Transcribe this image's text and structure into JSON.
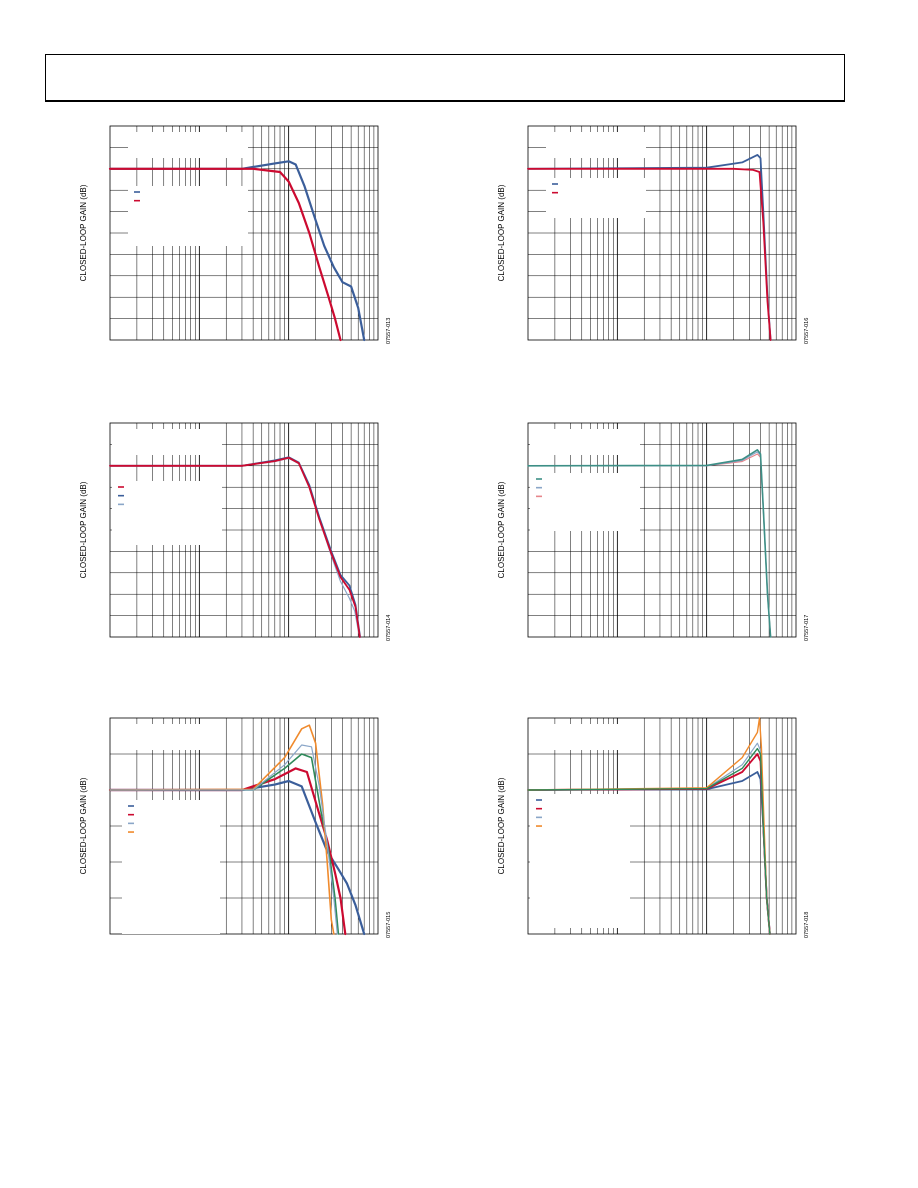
{
  "page": {
    "header_text": ""
  },
  "colors": {
    "blue": "#3b5e9a",
    "red": "#cc0a30",
    "teal": "#3d8f86",
    "lightblue": "#8aa6c8",
    "salmon": "#e7858b",
    "green": "#2f8a5a",
    "orange": "#f08a2c",
    "gray": "#777777"
  },
  "chart_data": [
    {
      "type": "line",
      "id": "fig-013",
      "ylabel": "CLOSED-LOOP GAIN (dB)",
      "code": "07557-013",
      "xscale": "log",
      "xlim": [
        1,
        1000
      ],
      "ylim": [
        -8,
        2
      ],
      "series": [
        {
          "color": "blue",
          "width": 2.2,
          "points": [
            [
              1,
              0
            ],
            [
              30,
              0
            ],
            [
              70,
              0.25
            ],
            [
              100,
              0.35
            ],
            [
              120,
              0.2
            ],
            [
              150,
              -0.8
            ],
            [
              200,
              -2.4
            ],
            [
              250,
              -3.6
            ],
            [
              320,
              -4.6
            ],
            [
              400,
              -5.3
            ],
            [
              500,
              -5.5
            ],
            [
              600,
              -6.5
            ],
            [
              700,
              -8
            ]
          ]
        },
        {
          "color": "red",
          "width": 2.2,
          "points": [
            [
              1,
              0
            ],
            [
              40,
              0
            ],
            [
              80,
              -0.15
            ],
            [
              100,
              -0.6
            ],
            [
              130,
              -1.6
            ],
            [
              170,
              -3.0
            ],
            [
              220,
              -4.6
            ],
            [
              280,
              -6.0
            ],
            [
              330,
              -7.0
            ],
            [
              380,
              -8
            ]
          ]
        }
      ],
      "legend": [
        {
          "color": "blue"
        },
        {
          "color": "red"
        }
      ]
    },
    {
      "type": "line",
      "id": "fig-016",
      "ylabel": "CLOSED-LOOP GAIN (dB)",
      "code": "07557-016",
      "xscale": "log",
      "xlim": [
        1,
        1000
      ],
      "ylim": [
        -8,
        2
      ],
      "series": [
        {
          "color": "blue",
          "width": 1.8,
          "points": [
            [
              1,
              0
            ],
            [
              100,
              0.05
            ],
            [
              250,
              0.3
            ],
            [
              370,
              0.65
            ],
            [
              400,
              0.5
            ],
            [
              430,
              -2
            ],
            [
              480,
              -6
            ],
            [
              520,
              -8
            ]
          ]
        },
        {
          "color": "red",
          "width": 1.8,
          "points": [
            [
              1,
              0
            ],
            [
              200,
              0
            ],
            [
              330,
              -0.05
            ],
            [
              390,
              -0.15
            ],
            [
              430,
              -2.5
            ],
            [
              480,
              -6.2
            ],
            [
              520,
              -8
            ]
          ]
        }
      ],
      "legend": [
        {
          "color": "blue"
        },
        {
          "color": "red"
        }
      ]
    },
    {
      "type": "line",
      "id": "fig-014",
      "ylabel": "CLOSED-LOOP GAIN (dB)",
      "code": "07557-014",
      "xscale": "log",
      "xlim": [
        1,
        1000
      ],
      "ylim": [
        -8,
        2
      ],
      "series": [
        {
          "color": "lightblue",
          "width": 1.2,
          "points": [
            [
              1,
              0
            ],
            [
              30,
              0
            ],
            [
              70,
              0.2
            ],
            [
              100,
              0.35
            ],
            [
              130,
              0.1
            ],
            [
              170,
              -1
            ],
            [
              220,
              -2.5
            ],
            [
              300,
              -4.2
            ],
            [
              380,
              -5.4
            ],
            [
              480,
              -6.2
            ],
            [
              550,
              -6.8
            ],
            [
              620,
              -8
            ]
          ]
        },
        {
          "color": "blue",
          "width": 1.8,
          "points": [
            [
              1,
              0
            ],
            [
              30,
              0
            ],
            [
              70,
              0.25
            ],
            [
              100,
              0.4
            ],
            [
              130,
              0.15
            ],
            [
              170,
              -0.9
            ],
            [
              220,
              -2.4
            ],
            [
              300,
              -4.0
            ],
            [
              380,
              -5.1
            ],
            [
              480,
              -5.6
            ],
            [
              560,
              -6.5
            ],
            [
              630,
              -8
            ]
          ]
        },
        {
          "color": "red",
          "width": 1.8,
          "points": [
            [
              1,
              0
            ],
            [
              30,
              0
            ],
            [
              70,
              0.22
            ],
            [
              100,
              0.38
            ],
            [
              130,
              0.12
            ],
            [
              170,
              -1
            ],
            [
              220,
              -2.5
            ],
            [
              300,
              -4.1
            ],
            [
              380,
              -5.2
            ],
            [
              480,
              -5.8
            ],
            [
              560,
              -6.6
            ],
            [
              625,
              -8
            ]
          ]
        }
      ],
      "legend": [
        {
          "color": "red"
        },
        {
          "color": "blue"
        },
        {
          "color": "lightblue"
        }
      ]
    },
    {
      "type": "line",
      "id": "fig-017",
      "ylabel": "CLOSED-LOOP GAIN (dB)",
      "code": "07557-017",
      "xscale": "log",
      "xlim": [
        1,
        1000
      ],
      "ylim": [
        -8,
        2
      ],
      "series": [
        {
          "color": "salmon",
          "width": 1.2,
          "points": [
            [
              1,
              0
            ],
            [
              100,
              0
            ],
            [
              250,
              0.2
            ],
            [
              370,
              0.55
            ],
            [
              400,
              0.4
            ],
            [
              430,
              -2
            ],
            [
              480,
              -6
            ],
            [
              520,
              -8
            ]
          ]
        },
        {
          "color": "lightblue",
          "width": 1.2,
          "points": [
            [
              1,
              0
            ],
            [
              100,
              0
            ],
            [
              250,
              0.25
            ],
            [
              370,
              0.65
            ],
            [
              400,
              0.5
            ],
            [
              430,
              -2
            ],
            [
              480,
              -6
            ],
            [
              520,
              -8
            ]
          ]
        },
        {
          "color": "teal",
          "width": 1.6,
          "points": [
            [
              1,
              0
            ],
            [
              100,
              0.02
            ],
            [
              250,
              0.3
            ],
            [
              370,
              0.75
            ],
            [
              400,
              0.55
            ],
            [
              430,
              -2
            ],
            [
              480,
              -6
            ],
            [
              520,
              -8
            ]
          ]
        }
      ],
      "legend": [
        {
          "color": "teal"
        },
        {
          "color": "lightblue"
        },
        {
          "color": "salmon"
        }
      ]
    },
    {
      "type": "line",
      "id": "fig-015",
      "ylabel": "CLOSED-LOOP GAIN (dB)",
      "code": "07557-015",
      "xscale": "log",
      "xlim": [
        1,
        1000
      ],
      "ylim": [
        -4,
        2
      ],
      "series": [
        {
          "color": "blue",
          "width": 2.2,
          "points": [
            [
              1,
              0
            ],
            [
              30,
              0
            ],
            [
              70,
              0.15
            ],
            [
              100,
              0.25
            ],
            [
              140,
              0.1
            ],
            [
              200,
              -0.9
            ],
            [
              270,
              -1.7
            ],
            [
              360,
              -2.2
            ],
            [
              450,
              -2.6
            ],
            [
              560,
              -3.2
            ],
            [
              700,
              -4
            ]
          ]
        },
        {
          "color": "red",
          "width": 2.2,
          "points": [
            [
              1,
              0
            ],
            [
              30,
              0
            ],
            [
              70,
              0.3
            ],
            [
              120,
              0.6
            ],
            [
              160,
              0.5
            ],
            [
              210,
              -0.5
            ],
            [
              270,
              -1.4
            ],
            [
              330,
              -2.3
            ],
            [
              380,
              -3
            ],
            [
              430,
              -4
            ]
          ]
        },
        {
          "color": "green",
          "width": 1.6,
          "points": [
            [
              1,
              0
            ],
            [
              40,
              0
            ],
            [
              90,
              0.6
            ],
            [
              140,
              1.0
            ],
            [
              180,
              0.9
            ],
            [
              230,
              -0.6
            ],
            [
              290,
              -1.9
            ],
            [
              330,
              -3
            ],
            [
              360,
              -4
            ]
          ]
        },
        {
          "color": "orange",
          "width": 1.6,
          "points": [
            [
              1,
              0
            ],
            [
              40,
              0.02
            ],
            [
              90,
              0.9
            ],
            [
              140,
              1.7
            ],
            [
              170,
              1.8
            ],
            [
              200,
              1.3
            ],
            [
              240,
              -0.4
            ],
            [
              270,
              -2
            ],
            [
              300,
              -3.6
            ],
            [
              320,
              -4
            ]
          ]
        },
        {
          "color": "lightblue",
          "width": 1.2,
          "points": [
            [
              1,
              0
            ],
            [
              40,
              0
            ],
            [
              90,
              0.7
            ],
            [
              140,
              1.25
            ],
            [
              180,
              1.2
            ],
            [
              220,
              0.1
            ],
            [
              270,
              -1.5
            ],
            [
              320,
              -3
            ],
            [
              350,
              -4
            ]
          ]
        }
      ],
      "legend": [
        {
          "color": "blue"
        },
        {
          "color": "red"
        },
        {
          "color": "lightblue"
        },
        {
          "color": "orange"
        }
      ]
    },
    {
      "type": "line",
      "id": "fig-018",
      "ylabel": "CLOSED-LOOP GAIN (dB)",
      "code": "07557-018",
      "xscale": "log",
      "xlim": [
        1,
        1000
      ],
      "ylim": [
        -4,
        2
      ],
      "series": [
        {
          "color": "blue",
          "width": 1.8,
          "points": [
            [
              1,
              0
            ],
            [
              100,
              0.02
            ],
            [
              250,
              0.25
            ],
            [
              370,
              0.5
            ],
            [
              400,
              0.3
            ],
            [
              430,
              -1
            ],
            [
              470,
              -3
            ],
            [
              510,
              -4
            ]
          ]
        },
        {
          "color": "red",
          "width": 1.8,
          "points": [
            [
              1,
              0
            ],
            [
              100,
              0.03
            ],
            [
              250,
              0.5
            ],
            [
              370,
              1.0
            ],
            [
              400,
              0.8
            ],
            [
              430,
              -1
            ],
            [
              470,
              -3
            ],
            [
              510,
              -4
            ]
          ]
        },
        {
          "color": "lightblue",
          "width": 1.2,
          "points": [
            [
              1,
              0
            ],
            [
              100,
              0.05
            ],
            [
              250,
              0.7
            ],
            [
              370,
              1.3
            ],
            [
              400,
              1.1
            ],
            [
              430,
              -1
            ],
            [
              470,
              -3
            ],
            [
              510,
              -4
            ]
          ]
        },
        {
          "color": "orange",
          "width": 1.4,
          "points": [
            [
              1,
              0
            ],
            [
              100,
              0.06
            ],
            [
              250,
              0.9
            ],
            [
              370,
              1.6
            ],
            [
              390,
              2.0
            ],
            [
              410,
              1.2
            ],
            [
              440,
              -1
            ],
            [
              470,
              -3
            ],
            [
              510,
              -4
            ]
          ]
        },
        {
          "color": "green",
          "width": 1.4,
          "points": [
            [
              1,
              0
            ],
            [
              100,
              0.04
            ],
            [
              250,
              0.6
            ],
            [
              370,
              1.15
            ],
            [
              400,
              1.0
            ],
            [
              430,
              -1
            ],
            [
              470,
              -3
            ],
            [
              510,
              -4
            ]
          ]
        }
      ],
      "legend": [
        {
          "color": "blue"
        },
        {
          "color": "red"
        },
        {
          "color": "lightblue"
        },
        {
          "color": "orange"
        }
      ]
    }
  ]
}
